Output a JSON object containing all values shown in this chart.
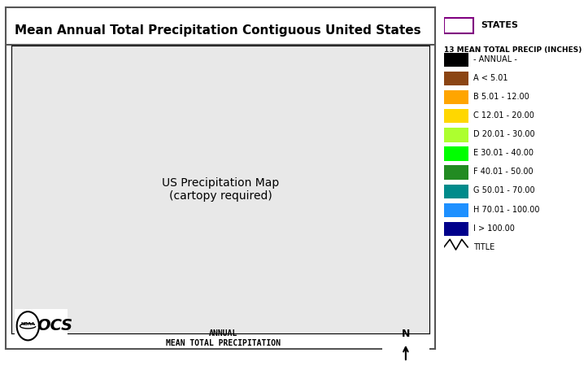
{
  "title": "Mean Annual Total Precipitation Contiguous United States",
  "subtitle_center": "ANNUAL\nMEAN TOTAL PRECIPITATION",
  "legend_title": "13 MEAN TOTAL PRECIP (INCHES)",
  "states_label": "STATES",
  "states_box_color": "#800080",
  "legend_entries": [
    {
      "label": "- ANNUAL -",
      "color": "#000000"
    },
    {
      "label": "A < 5.01",
      "color": "#8B4513"
    },
    {
      "label": "B 5.01 - 12.00",
      "color": "#FFA500"
    },
    {
      "label": "C 12.01 - 20.00",
      "color": "#FFD700"
    },
    {
      "label": "D 20.01 - 30.00",
      "color": "#ADFF2F"
    },
    {
      "label": "E 30.01 - 40.00",
      "color": "#00FF00"
    },
    {
      "label": "F 40.01 - 50.00",
      "color": "#228B22"
    },
    {
      "label": "G 50.01 - 70.00",
      "color": "#008B8B"
    },
    {
      "label": "H 70.01 - 100.00",
      "color": "#1E90FF"
    },
    {
      "label": "I > 100.00",
      "color": "#00008B"
    }
  ],
  "background_color": "#ffffff",
  "map_background": "#ffffff",
  "title_fontsize": 11,
  "legend_fontsize": 8,
  "border_box_color": "#555555",
  "noaa_text": "NOAA",
  "ocs_text": "OCS"
}
